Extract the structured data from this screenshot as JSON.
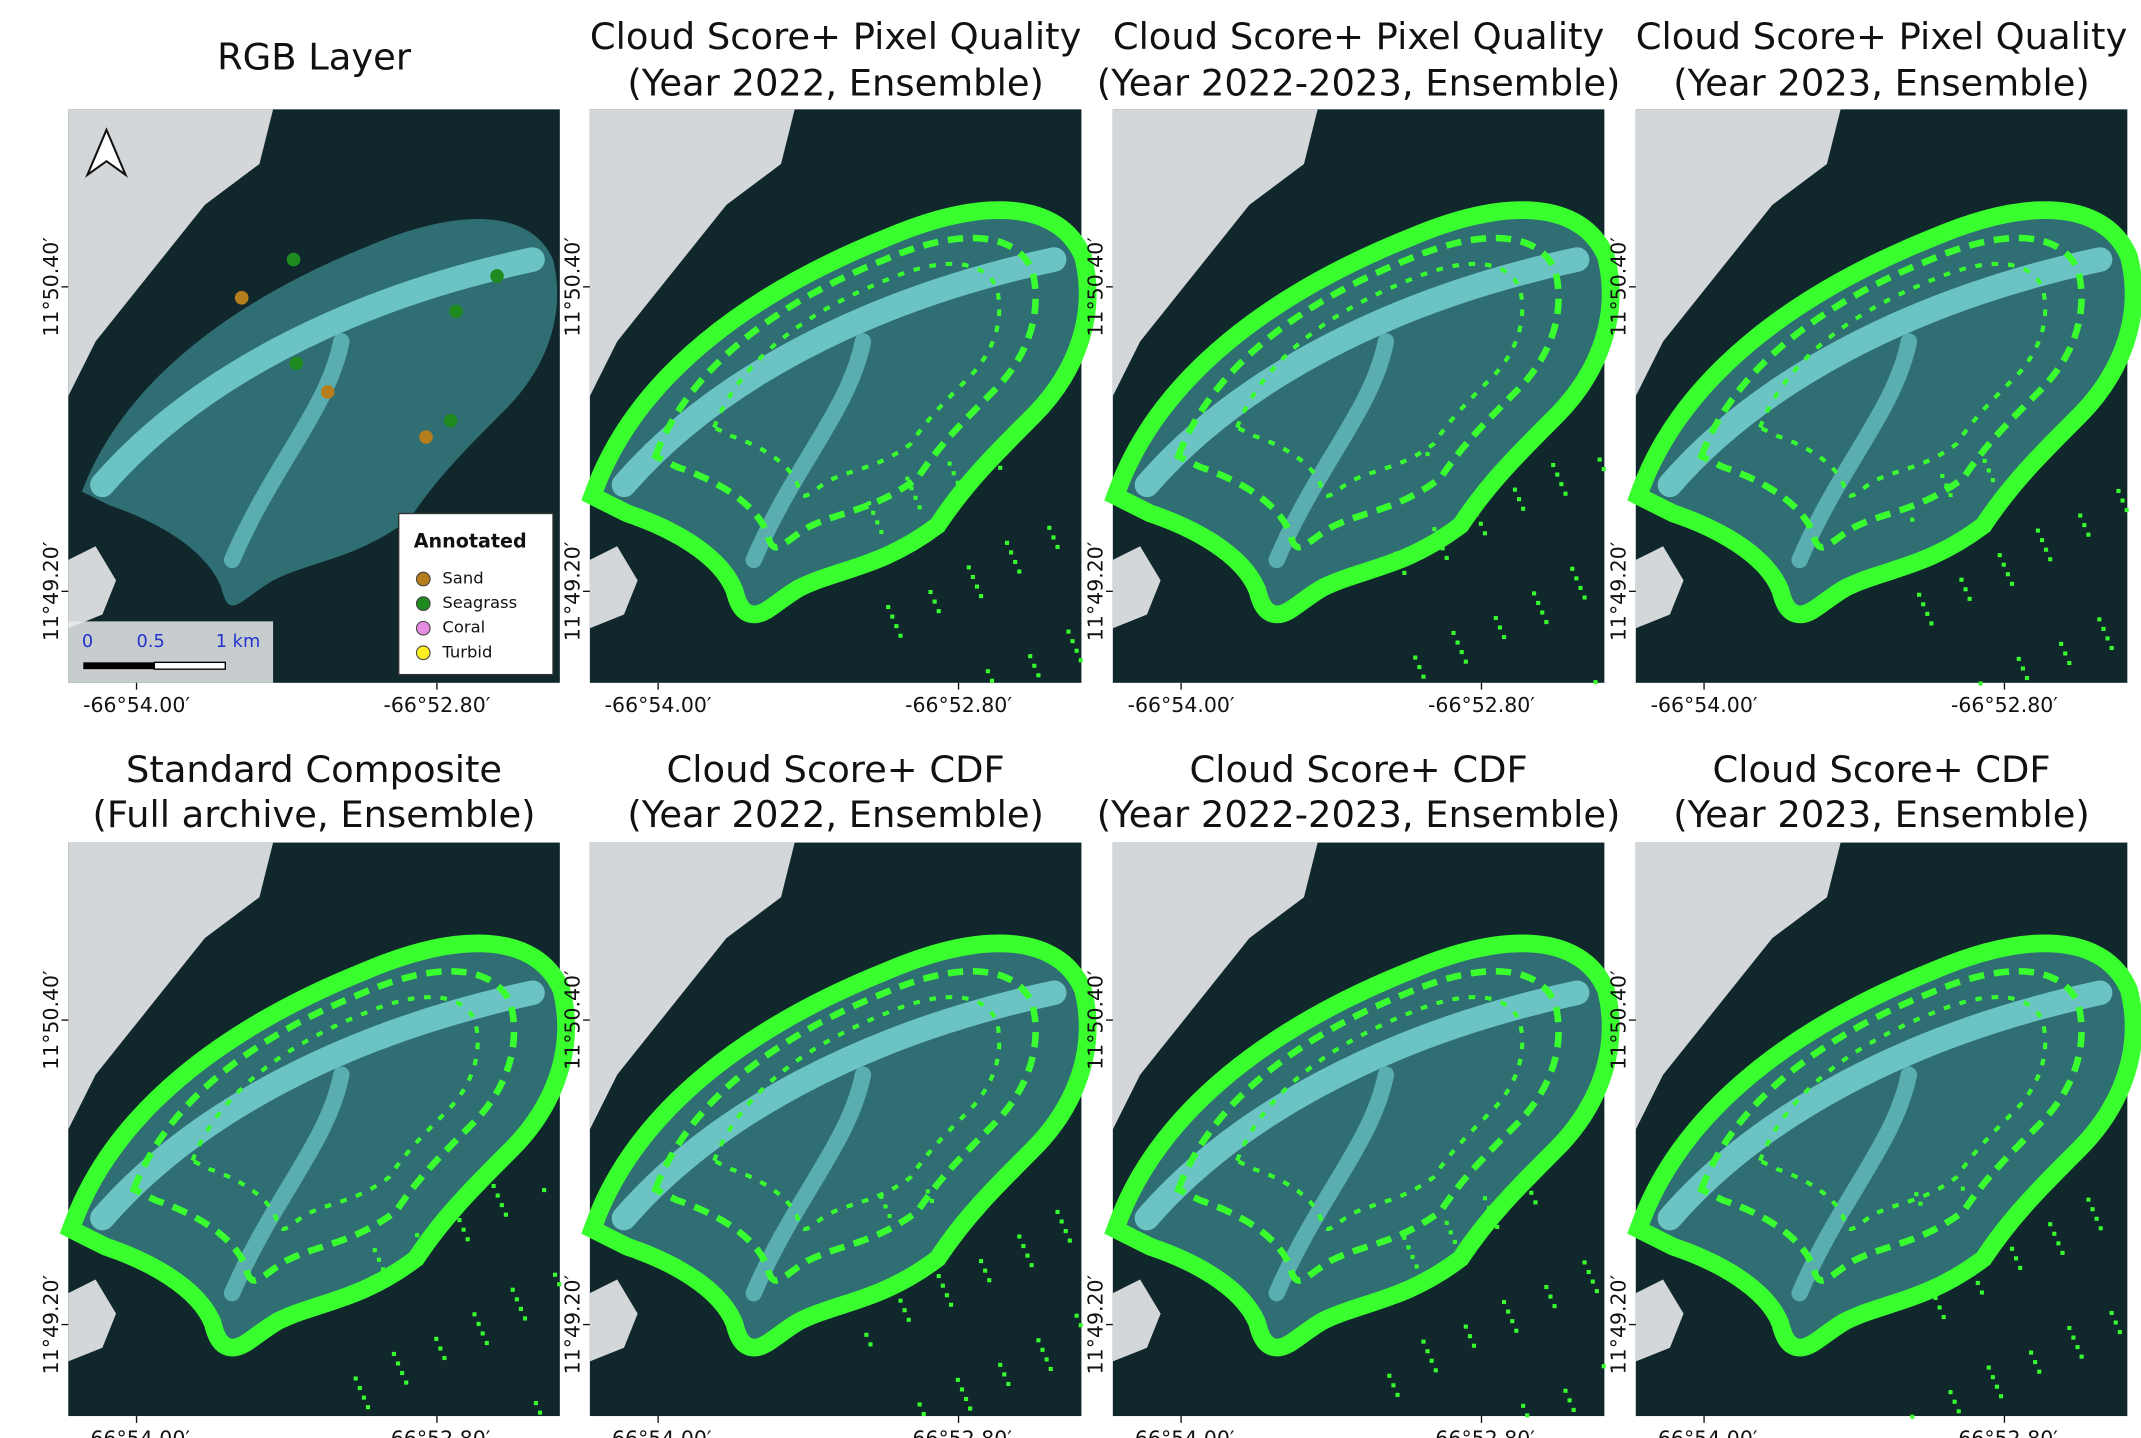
{
  "panels": [
    {
      "title": [
        "RGB Layer"
      ],
      "type": "rgb"
    },
    {
      "title": [
        "Cloud Score+ Pixel Quality",
        "(Year 2022, Ensemble)"
      ],
      "type": "classified"
    },
    {
      "title": [
        "Cloud Score+ Pixel Quality",
        "(Year 2022-2023, Ensemble)"
      ],
      "type": "classified"
    },
    {
      "title": [
        "Cloud Score+ Pixel Quality",
        "(Year 2023, Ensemble)"
      ],
      "type": "classified"
    },
    {
      "title": [
        "Standard Composite",
        "(Full archive, Ensemble)"
      ],
      "type": "classified"
    },
    {
      "title": [
        "Cloud Score+ CDF",
        "(Year 2022, Ensemble)"
      ],
      "type": "classified"
    },
    {
      "title": [
        "Cloud Score+ CDF",
        "(Year 2022-2023, Ensemble)"
      ],
      "type": "classified"
    },
    {
      "title": [
        "Cloud Score+ CDF",
        "(Year 2023, Ensemble)"
      ],
      "type": "classified"
    }
  ],
  "axes": {
    "xticks": [
      "-66°54.00′",
      "-66°52.80′"
    ],
    "yticks": [
      "11°50.40′",
      "11°49.20′"
    ]
  },
  "legend": {
    "title": "Annotated",
    "items": [
      {
        "label": "Sand",
        "color": "#b57d1c"
      },
      {
        "label": "Seagrass",
        "color": "#1f8a1f"
      },
      {
        "label": "Coral",
        "color": "#e58be0"
      },
      {
        "label": "Turbid",
        "color": "#ffee22"
      }
    ]
  },
  "scale_bar": {
    "labels": [
      "0",
      "0.5",
      "1 km"
    ]
  }
}
